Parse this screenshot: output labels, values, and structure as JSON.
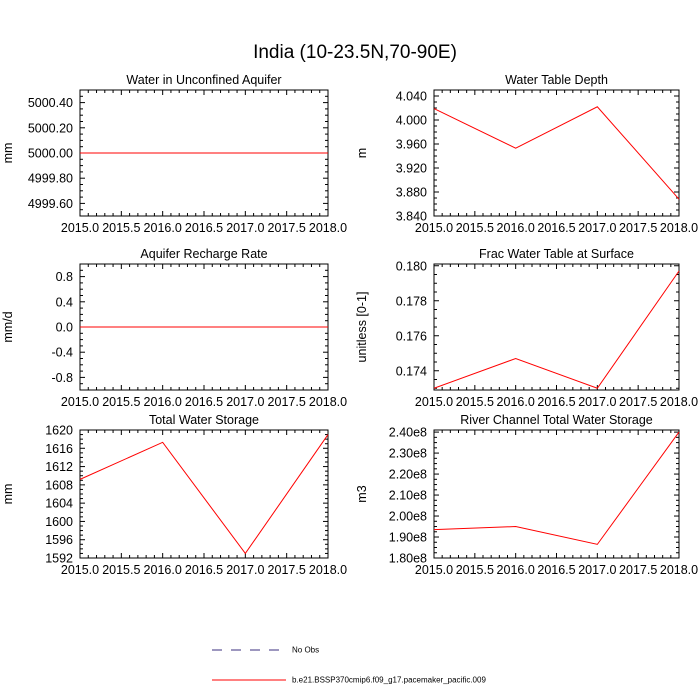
{
  "title": "India (10-23.5N,70-90E)",
  "legend": [
    {
      "label": "No Obs",
      "color": "#3b2f7f",
      "dash": true
    },
    {
      "label": "b.e21.BSSP370cmip6.f09_g17.pacemaker_pacific.009",
      "color": "#ff0000",
      "dash": false
    }
  ],
  "chart_data": [
    {
      "type": "line",
      "title": "Water in Unconfined Aquifer",
      "ylabel": "mm",
      "xlim": [
        2015.0,
        2018.0
      ],
      "ylim": [
        4999.5,
        5000.5
      ],
      "xticks": [
        2015.0,
        2015.5,
        2016.0,
        2016.5,
        2017.0,
        2017.5,
        2018.0
      ],
      "xtick_labels": [
        "2015.0",
        "2015.5",
        "2016.0",
        "2016.5",
        "2017.0",
        "2017.5",
        "2018.0"
      ],
      "yticks": [
        4999.6,
        4999.8,
        5000.0,
        5000.2,
        5000.4
      ],
      "ytick_labels": [
        "4999.60",
        "4999.80",
        "5000.00",
        "5000.20",
        "5000.40"
      ],
      "series": [
        {
          "color": "#ff0000",
          "x": [
            2015.0,
            2016.0,
            2017.0,
            2018.0
          ],
          "values": [
            5000.0,
            5000.0,
            5000.0,
            5000.0
          ]
        }
      ]
    },
    {
      "type": "line",
      "title": "Water Table Depth",
      "ylabel": "m",
      "xlim": [
        2015.0,
        2018.0
      ],
      "ylim": [
        3.84,
        4.05
      ],
      "xticks": [
        2015.0,
        2015.5,
        2016.0,
        2016.5,
        2017.0,
        2017.5,
        2018.0
      ],
      "xtick_labels": [
        "2015.0",
        "2015.5",
        "2016.0",
        "2016.5",
        "2017.0",
        "2017.5",
        "2018.0"
      ],
      "yticks": [
        3.84,
        3.88,
        3.92,
        3.96,
        4.0,
        4.04
      ],
      "ytick_labels": [
        "3.840",
        "3.880",
        "3.920",
        "3.960",
        "4.000",
        "4.040"
      ],
      "series": [
        {
          "color": "#ff0000",
          "x": [
            2015.0,
            2016.0,
            2017.0,
            2018.0
          ],
          "values": [
            4.019,
            3.953,
            4.022,
            3.868
          ]
        }
      ]
    },
    {
      "type": "line",
      "title": "Aquifer Recharge Rate",
      "ylabel": "mm/d",
      "xlim": [
        2015.0,
        2018.0
      ],
      "ylim": [
        -1.0,
        1.0
      ],
      "xticks": [
        2015.0,
        2015.5,
        2016.0,
        2016.5,
        2017.0,
        2017.5,
        2018.0
      ],
      "xtick_labels": [
        "2015.0",
        "2015.5",
        "2016.0",
        "2016.5",
        "2017.0",
        "2017.5",
        "2018.0"
      ],
      "yticks": [
        -0.8,
        -0.4,
        0.0,
        0.4,
        0.8
      ],
      "ytick_labels": [
        "-0.8",
        "-0.4",
        "0.0",
        "0.4",
        "0.8"
      ],
      "series": [
        {
          "color": "#ff0000",
          "x": [
            2015.0,
            2016.0,
            2017.0,
            2018.0
          ],
          "values": [
            0.0,
            0.0,
            0.0,
            0.0
          ]
        }
      ]
    },
    {
      "type": "line",
      "title": "Frac Water Table at Surface",
      "ylabel": "unitless [0-1]",
      "xlim": [
        2015.0,
        2018.0
      ],
      "ylim": [
        0.1729,
        0.1801
      ],
      "xticks": [
        2015.0,
        2015.5,
        2016.0,
        2016.5,
        2017.0,
        2017.5,
        2018.0
      ],
      "xtick_labels": [
        "2015.0",
        "2015.5",
        "2016.0",
        "2016.5",
        "2017.0",
        "2017.5",
        "2018.0"
      ],
      "yticks": [
        0.174,
        0.176,
        0.178,
        0.18
      ],
      "ytick_labels": [
        "0.174",
        "0.176",
        "0.178",
        "0.180"
      ],
      "series": [
        {
          "color": "#ff0000",
          "x": [
            2015.0,
            2016.0,
            2017.0,
            2018.0
          ],
          "values": [
            0.173,
            0.1747,
            0.173,
            0.1797
          ]
        }
      ]
    },
    {
      "type": "line",
      "title": "Total Water Storage",
      "ylabel": "mm",
      "xlim": [
        2015.0,
        2018.0
      ],
      "ylim": [
        1592,
        1620
      ],
      "xticks": [
        2015.0,
        2015.5,
        2016.0,
        2016.5,
        2017.0,
        2017.5,
        2018.0
      ],
      "xtick_labels": [
        "2015.0",
        "2015.5",
        "2016.0",
        "2016.5",
        "2017.0",
        "2017.5",
        "2018.0"
      ],
      "yticks": [
        1592,
        1596,
        1600,
        1604,
        1608,
        1612,
        1616,
        1620
      ],
      "ytick_labels": [
        "1592",
        "1596",
        "1600",
        "1604",
        "1608",
        "1612",
        "1616",
        "1620"
      ],
      "series": [
        {
          "color": "#ff0000",
          "x": [
            2015.0,
            2016.0,
            2017.0,
            2018.0
          ],
          "values": [
            1609.2,
            1617.3,
            1593.0,
            1619.0
          ]
        }
      ]
    },
    {
      "type": "line",
      "title": "River Channel Total Water Storage",
      "ylabel": "m3",
      "xlim": [
        2015.0,
        2018.0
      ],
      "ylim": [
        180000000,
        241000000
      ],
      "xticks": [
        2015.0,
        2015.5,
        2016.0,
        2016.5,
        2017.0,
        2017.5,
        2018.0
      ],
      "xtick_labels": [
        "2015.0",
        "2015.5",
        "2016.0",
        "2016.5",
        "2017.0",
        "2017.5",
        "2018.0"
      ],
      "yticks": [
        180000000,
        190000000,
        200000000,
        210000000,
        220000000,
        230000000,
        240000000
      ],
      "ytick_labels": [
        "1.80e8",
        "1.90e8",
        "2.00e8",
        "2.10e8",
        "2.20e8",
        "2.30e8",
        "2.40e8"
      ],
      "series": [
        {
          "color": "#ff0000",
          "x": [
            2015.0,
            2016.0,
            2017.0,
            2018.0
          ],
          "values": [
            193500000,
            195000000,
            186500000,
            240000000
          ]
        }
      ]
    }
  ]
}
